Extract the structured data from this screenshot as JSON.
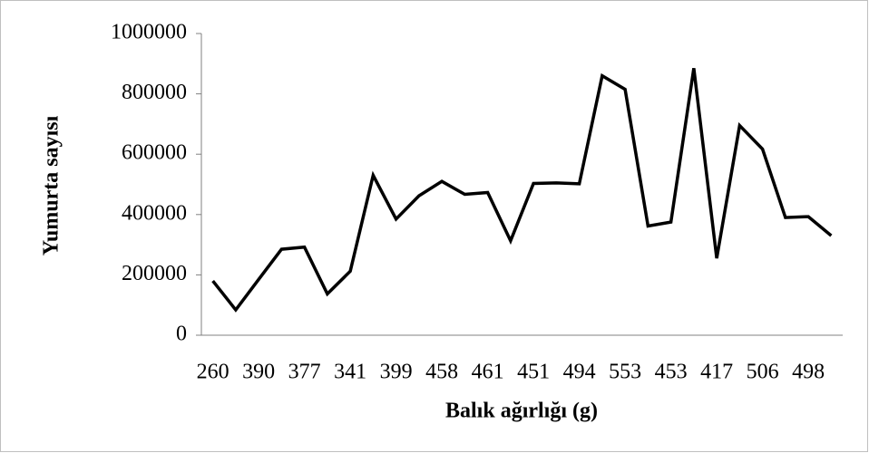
{
  "chart_data": {
    "type": "line",
    "x_label": "Balık ağırlığı (g)",
    "y_label": "Yumurta sayısı",
    "categories": [
      "260",
      null,
      "390",
      null,
      "377",
      null,
      "341",
      null,
      "399",
      null,
      "458",
      null,
      "461",
      null,
      "451",
      null,
      "494",
      null,
      "553",
      null,
      "453",
      null,
      "417",
      null,
      "506",
      null,
      "498",
      null
    ],
    "series": [
      {
        "name": "Yumurta sayısı",
        "color": "#000000",
        "values": [
          180000,
          84000,
          185000,
          285000,
          292000,
          137000,
          212000,
          530000,
          385000,
          462000,
          510000,
          467000,
          473000,
          313000,
          503000,
          505000,
          502000,
          860000,
          815000,
          362000,
          375000,
          885000,
          255000,
          695000,
          617000,
          390000,
          393000,
          330000
        ]
      }
    ],
    "ylim": [
      0,
      1000000
    ],
    "yticks": [
      0,
      200000,
      400000,
      600000,
      800000,
      1000000
    ]
  }
}
